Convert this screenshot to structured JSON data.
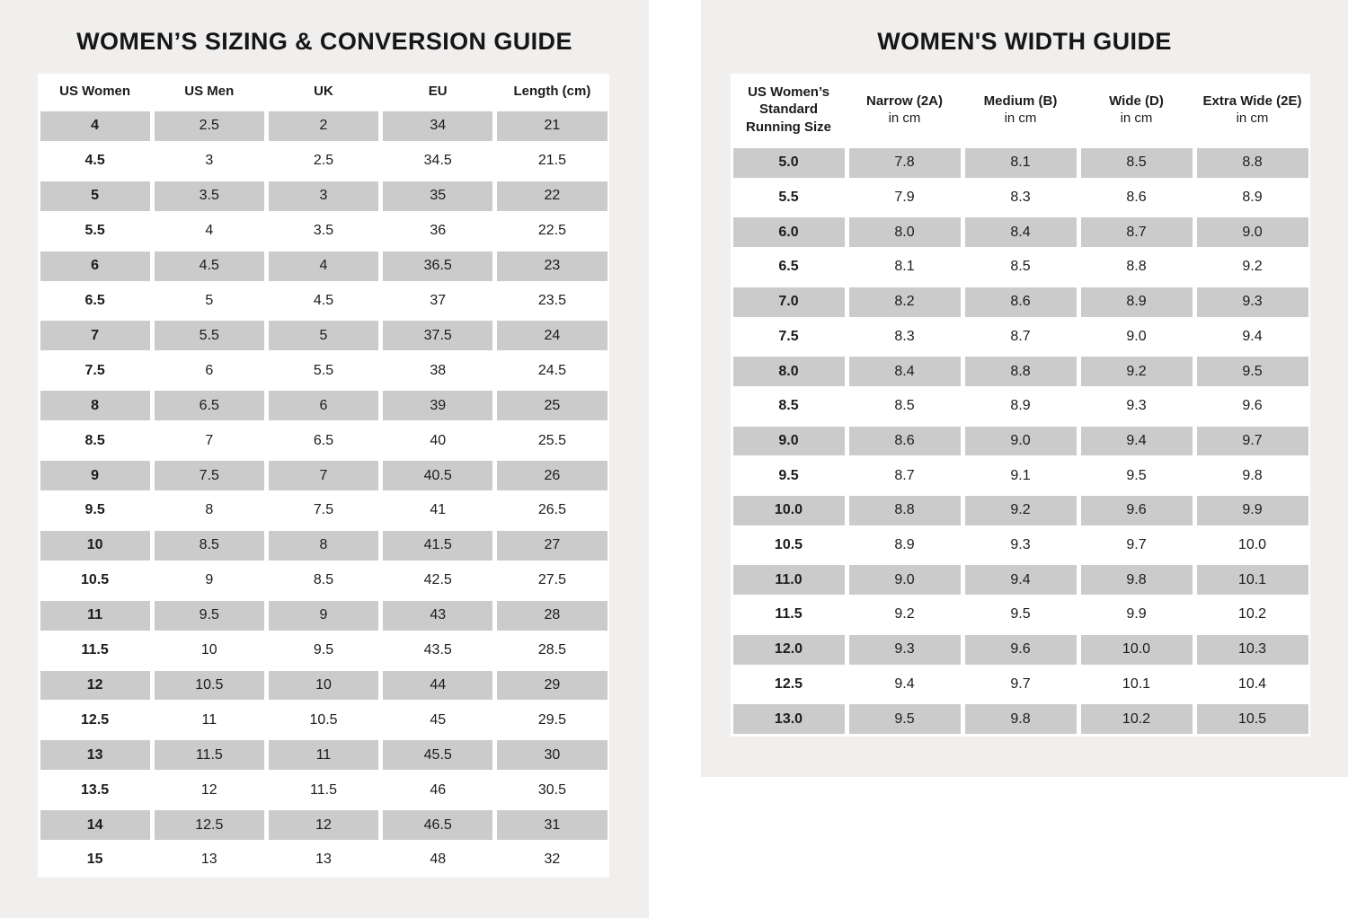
{
  "colors": {
    "panel_background": "#f1efee",
    "row_shade": "#cbcbcb",
    "card_background": "#ffffff",
    "text": "#1c1c1c"
  },
  "chart_data": [
    {
      "type": "table",
      "title": "WOMEN’S SIZING & CONVERSION GUIDE",
      "columns": [
        "US Women",
        "US Men",
        "UK",
        "EU",
        "Length (cm)"
      ],
      "rows": [
        [
          "4",
          "2.5",
          "2",
          "34",
          "21"
        ],
        [
          "4.5",
          "3",
          "2.5",
          "34.5",
          "21.5"
        ],
        [
          "5",
          "3.5",
          "3",
          "35",
          "22"
        ],
        [
          "5.5",
          "4",
          "3.5",
          "36",
          "22.5"
        ],
        [
          "6",
          "4.5",
          "4",
          "36.5",
          "23"
        ],
        [
          "6.5",
          "5",
          "4.5",
          "37",
          "23.5"
        ],
        [
          "7",
          "5.5",
          "5",
          "37.5",
          "24"
        ],
        [
          "7.5",
          "6",
          "5.5",
          "38",
          "24.5"
        ],
        [
          "8",
          "6.5",
          "6",
          "39",
          "25"
        ],
        [
          "8.5",
          "7",
          "6.5",
          "40",
          "25.5"
        ],
        [
          "9",
          "7.5",
          "7",
          "40.5",
          "26"
        ],
        [
          "9.5",
          "8",
          "7.5",
          "41",
          "26.5"
        ],
        [
          "10",
          "8.5",
          "8",
          "41.5",
          "27"
        ],
        [
          "10.5",
          "9",
          "8.5",
          "42.5",
          "27.5"
        ],
        [
          "11",
          "9.5",
          "9",
          "43",
          "28"
        ],
        [
          "11.5",
          "10",
          "9.5",
          "43.5",
          "28.5"
        ],
        [
          "12",
          "10.5",
          "10",
          "44",
          "29"
        ],
        [
          "12.5",
          "11",
          "10.5",
          "45",
          "29.5"
        ],
        [
          "13",
          "11.5",
          "11",
          "45.5",
          "30"
        ],
        [
          "13.5",
          "12",
          "11.5",
          "46",
          "30.5"
        ],
        [
          "14",
          "12.5",
          "12",
          "46.5",
          "31"
        ],
        [
          "15",
          "13",
          "13",
          "48",
          "32"
        ]
      ]
    },
    {
      "type": "table",
      "title": "WOMEN'S WIDTH GUIDE",
      "columns": [
        "US Women’s Standard Running Size",
        "Narrow (2A)",
        "Medium (B)",
        "Wide (D)",
        "Extra Wide (2E)"
      ],
      "column_subs": [
        "",
        "in cm",
        "in cm",
        "in cm",
        "in cm"
      ],
      "rows": [
        [
          "5.0",
          "7.8",
          "8.1",
          "8.5",
          "8.8"
        ],
        [
          "5.5",
          "7.9",
          "8.3",
          "8.6",
          "8.9"
        ],
        [
          "6.0",
          "8.0",
          "8.4",
          "8.7",
          "9.0"
        ],
        [
          "6.5",
          "8.1",
          "8.5",
          "8.8",
          "9.2"
        ],
        [
          "7.0",
          "8.2",
          "8.6",
          "8.9",
          "9.3"
        ],
        [
          "7.5",
          "8.3",
          "8.7",
          "9.0",
          "9.4"
        ],
        [
          "8.0",
          "8.4",
          "8.8",
          "9.2",
          "9.5"
        ],
        [
          "8.5",
          "8.5",
          "8.9",
          "9.3",
          "9.6"
        ],
        [
          "9.0",
          "8.6",
          "9.0",
          "9.4",
          "9.7"
        ],
        [
          "9.5",
          "8.7",
          "9.1",
          "9.5",
          "9.8"
        ],
        [
          "10.0",
          "8.8",
          "9.2",
          "9.6",
          "9.9"
        ],
        [
          "10.5",
          "8.9",
          "9.3",
          "9.7",
          "10.0"
        ],
        [
          "11.0",
          "9.0",
          "9.4",
          "9.8",
          "10.1"
        ],
        [
          "11.5",
          "9.2",
          "9.5",
          "9.9",
          "10.2"
        ],
        [
          "12.0",
          "9.3",
          "9.6",
          "10.0",
          "10.3"
        ],
        [
          "12.5",
          "9.4",
          "9.7",
          "10.1",
          "10.4"
        ],
        [
          "13.0",
          "9.5",
          "9.8",
          "10.2",
          "10.5"
        ]
      ]
    }
  ]
}
